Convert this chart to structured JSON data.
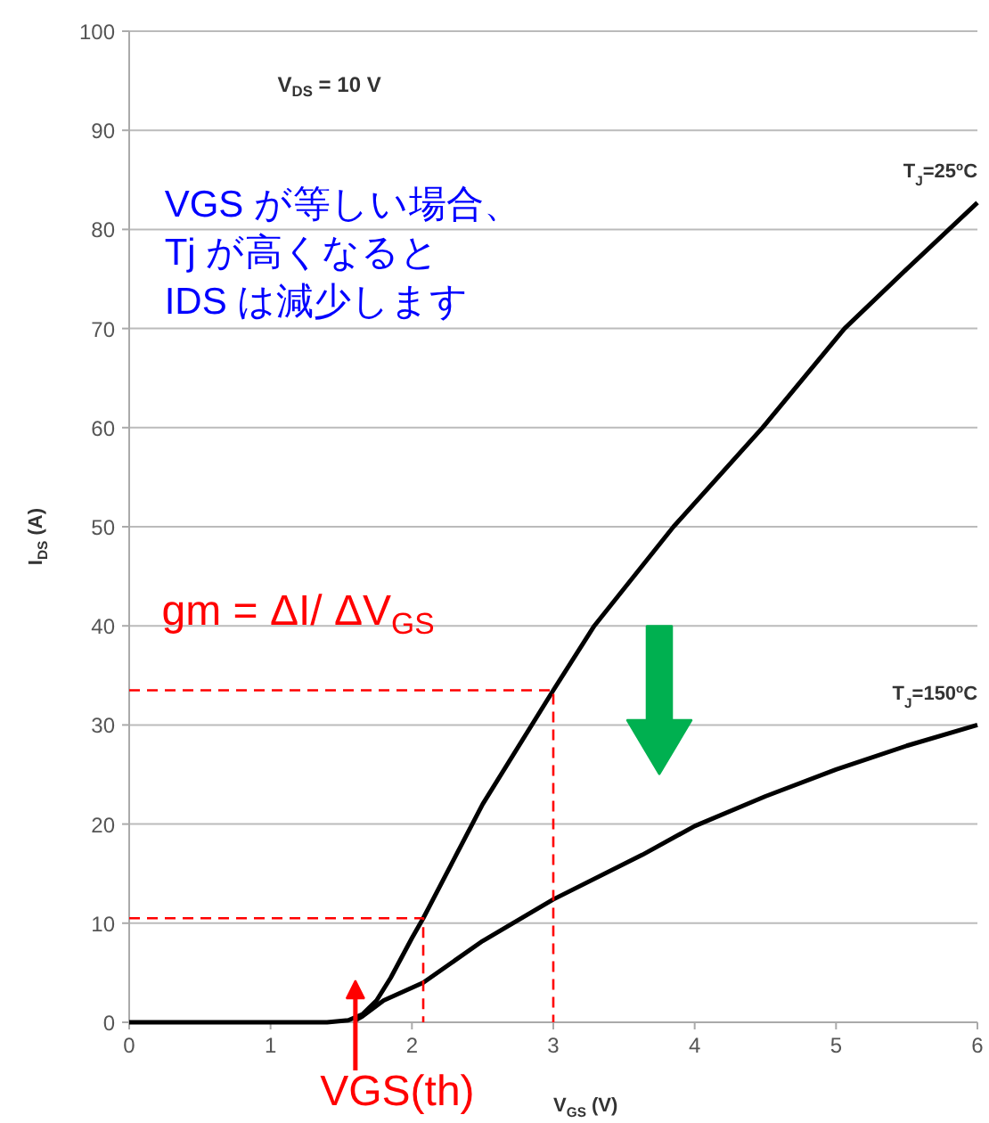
{
  "chart_data": {
    "type": "line",
    "xlabel": "V$_{GS}$ (V)",
    "ylabel": "I$_{DS}$ (A)",
    "xlim": [
      0,
      6
    ],
    "ylim": [
      0,
      100
    ],
    "xticks": [
      0,
      1,
      2,
      3,
      4,
      5,
      6
    ],
    "yticks": [
      0,
      10,
      20,
      30,
      40,
      50,
      60,
      70,
      80,
      90,
      100
    ],
    "grid": "y",
    "series": [
      {
        "color": "#000000",
        "x": [
          0,
          1,
          1.4,
          1.55,
          1.65,
          1.75,
          1.85,
          2.0,
          2.08,
          2.5,
          3.0,
          3.29,
          3.85,
          4.48,
          5.06,
          5.5,
          6.0
        ],
        "values": [
          0,
          0,
          0,
          0.2,
          0.8,
          2.2,
          4.5,
          8.5,
          10.5,
          22,
          33.5,
          40,
          50,
          60,
          70,
          76,
          82.7
        ]
      },
      {
        "color": "#000000",
        "x": [
          1.6,
          1.65,
          1.8,
          2.08,
          2.5,
          3.0,
          3.63,
          4.0,
          4.5,
          5.0,
          5.5,
          6.0
        ],
        "values": [
          0.2,
          0.6,
          2.2,
          4.0,
          8.2,
          12.4,
          16.9,
          19.8,
          22.8,
          25.5,
          27.9,
          30.0
        ]
      },
      {
        "color": "#ff0000",
        "line_style": "dashed",
        "x": [
          0,
          2.08,
          2.08
        ],
        "values": [
          10.5,
          10.5,
          0
        ]
      },
      {
        "color": "#ff0000",
        "line_style": "dashed",
        "x": [
          0,
          3.0,
          3.0
        ],
        "values": [
          33.5,
          33.5,
          0
        ]
      }
    ],
    "annotations": [
      "V$_{DS}$ = 10 V",
      "VGS が等しい場合、\nTj が高くなると\nIDS は減少します",
      "gm = ΔI/ ΔV$_{GS}$",
      "VGS(th)",
      {
        "text": "T$_{J}$=25ºC",
        "x": 6,
        "y": 82.7
      },
      {
        "text": "T$_{J}$=150ºC",
        "x": 6,
        "y": 30.0
      }
    ]
  }
}
